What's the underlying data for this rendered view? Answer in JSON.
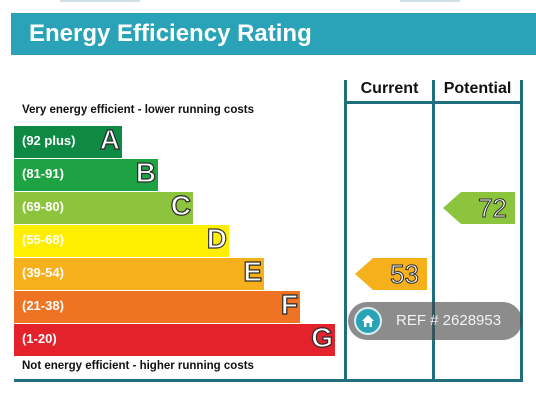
{
  "header": {
    "title": "Energy Efficiency Rating"
  },
  "columns": {
    "current": "Current",
    "potential": "Potential"
  },
  "notes": {
    "top": "Very energy efficient - lower running costs",
    "bottom": "Not energy efficient - higher running costs"
  },
  "chart_data": {
    "type": "bar",
    "title": "Energy Efficiency Rating",
    "bands": [
      {
        "range": "(92 plus)",
        "letter": "A",
        "color": "#0f8a45"
      },
      {
        "range": "(81-91)",
        "letter": "B",
        "color": "#1ea344"
      },
      {
        "range": "(69-80)",
        "letter": "C",
        "color": "#8cc43e"
      },
      {
        "range": "(55-68)",
        "letter": "D",
        "color": "#ffee00"
      },
      {
        "range": "(39-54)",
        "letter": "E",
        "color": "#f6b01c"
      },
      {
        "range": "(21-38)",
        "letter": "F",
        "color": "#ee7424"
      },
      {
        "range": "(1-20)",
        "letter": "G",
        "color": "#e3222c"
      }
    ],
    "current": {
      "value": 53,
      "band": "E",
      "color": "#f6b01c"
    },
    "potential": {
      "value": 72,
      "band": "C",
      "color": "#8cc43e"
    }
  },
  "watermark": {
    "text": "REF # 2628953",
    "icon": "home-icon"
  }
}
